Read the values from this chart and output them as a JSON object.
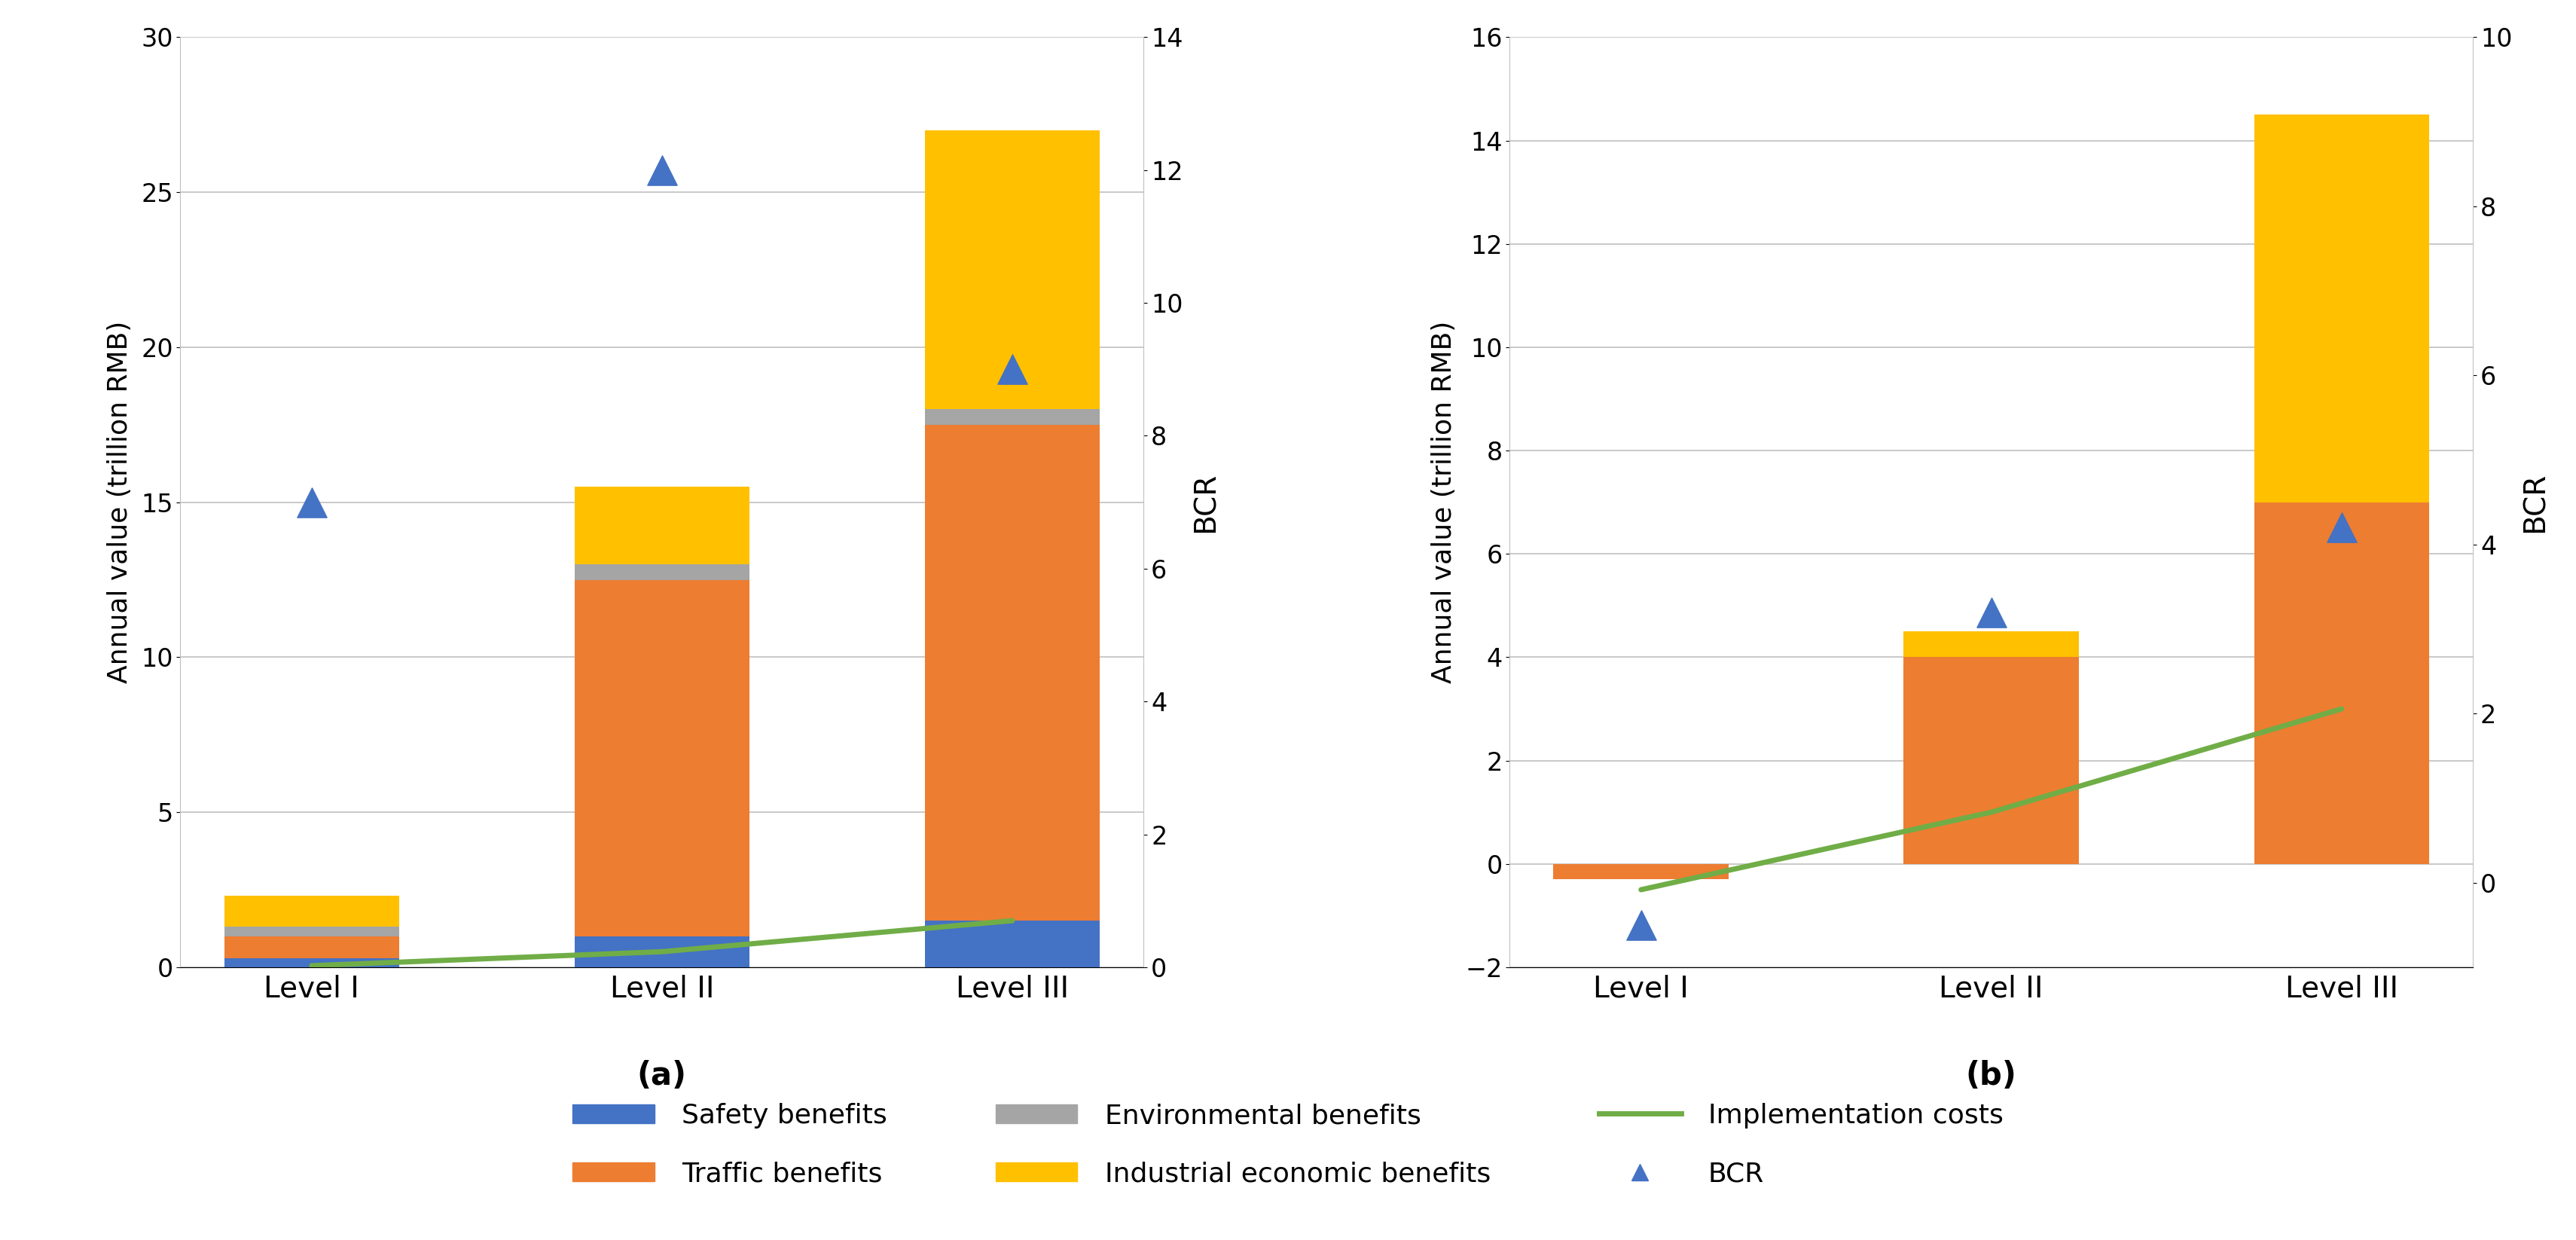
{
  "chart_a": {
    "categories": [
      "Level I",
      "Level II",
      "Level III"
    ],
    "safety_benefits": [
      0.3,
      1.0,
      1.5
    ],
    "traffic_benefits": [
      0.7,
      11.5,
      16.0
    ],
    "environmental_benefits": [
      0.3,
      0.5,
      0.5
    ],
    "industrial_benefits": [
      1.0,
      2.5,
      9.0
    ],
    "implementation_costs": [
      0.05,
      0.5,
      1.5
    ],
    "bcr": [
      7.0,
      12.0,
      9.0
    ],
    "ylim_left": [
      0,
      30
    ],
    "ylim_right": [
      0,
      14
    ],
    "ylabel_left": "Annual value (trillion RMB)",
    "ylabel_right": "BCR"
  },
  "chart_b": {
    "categories": [
      "Level I",
      "Level II",
      "Level III"
    ],
    "safety_benefits": [
      0.0,
      0.0,
      0.0
    ],
    "traffic_benefits": [
      -0.3,
      4.0,
      7.0
    ],
    "environmental_benefits": [
      0.0,
      0.0,
      0.0
    ],
    "industrial_benefits": [
      0.0,
      0.5,
      7.5
    ],
    "implementation_costs": [
      -0.5,
      1.0,
      3.0
    ],
    "bcr": [
      -0.5,
      3.2,
      4.2
    ],
    "ylim_left": [
      -2,
      16
    ],
    "ylim_right": [
      -1,
      10
    ],
    "ylabel_left": "Annual value (trillion RMB)",
    "ylabel_right": "BCR"
  },
  "colors": {
    "safety": "#4472C4",
    "traffic": "#ED7D31",
    "environmental": "#A5A5A5",
    "industrial": "#FFC000",
    "costs": "#70AD47",
    "bcr_marker": "#4472C4"
  },
  "legend_labels": {
    "safety": "Safety benefits",
    "traffic": "Traffic benefits",
    "environmental": "Environmental benefits",
    "industrial": "Industrial economic benefits",
    "costs": "Implementation costs",
    "bcr": "BCR"
  },
  "subplot_labels": [
    "(a)",
    "(b)"
  ]
}
